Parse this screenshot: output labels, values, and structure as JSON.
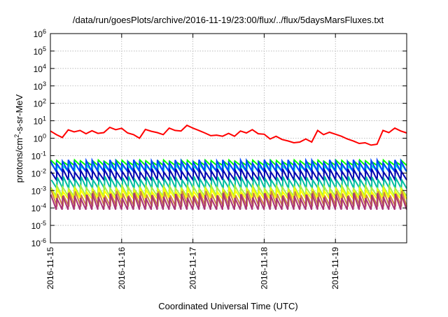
{
  "chart_data": {
    "type": "line",
    "title": "/data/run/goesPlots/archive/2016-11-19/23:00/flux/../flux/5daysMarsFluxes.txt",
    "xlabel": "Coordinated Universal Time (UTC)",
    "ylabel_base": "protons/cm",
    "ylabel_sup": "2",
    "ylabel_rest": "-s-sr-MeV",
    "x_tick_labels": [
      "2016-11-15",
      "2016-11-16",
      "2016-11-17",
      "2016-11-18",
      "2016-11-19"
    ],
    "x_range": [
      "2016-11-15 00:00",
      "2016-11-20 00:00"
    ],
    "y_scale": "log",
    "y_tick_base": "10",
    "y_tick_exponents": [
      "-6",
      "-5",
      "-4",
      "-3",
      "-2",
      "-1",
      "0",
      "1",
      "2",
      "3",
      "4",
      "5",
      "6"
    ],
    "y_range": [
      1e-06,
      1000000.0
    ],
    "grid": true,
    "legend": "none",
    "series": [
      {
        "color": "#ff0000",
        "x_hours": [
          0,
          2,
          4,
          6,
          8,
          10,
          12,
          14,
          16,
          18,
          20,
          22,
          24,
          26,
          28,
          30,
          32,
          34,
          36,
          38,
          40,
          42,
          44,
          46,
          48,
          50,
          52,
          54,
          56,
          58,
          60,
          62,
          64,
          66,
          68,
          70,
          72,
          74,
          76,
          78,
          80,
          82,
          84,
          86,
          88,
          90,
          92,
          94,
          96,
          98,
          100,
          102,
          104,
          106,
          108,
          110,
          112,
          114,
          116,
          118,
          120
        ],
        "values": [
          2.6,
          1.6,
          1.1,
          3,
          2.3,
          2.8,
          1.8,
          2.7,
          1.9,
          2.1,
          4.2,
          3.1,
          3.7,
          2,
          1.6,
          1,
          3.2,
          2.5,
          2.1,
          1.6,
          3.8,
          2.8,
          2.6,
          5.5,
          3.8,
          2.8,
          2,
          1.4,
          1.5,
          1.3,
          1.9,
          1.3,
          2.6,
          2,
          3.1,
          1.8,
          1.7,
          0.9,
          1.3,
          0.85,
          0.7,
          0.55,
          0.6,
          0.9,
          0.6,
          2.8,
          1.6,
          2.2,
          1.7,
          1.3,
          0.9,
          0.7,
          0.5,
          0.55,
          0.4,
          0.45,
          2.8,
          2.1,
          3.8,
          2.6,
          2
        ]
      },
      {
        "color": "#00ff00",
        "baseline": 0.028,
        "amplitude_decades": 0.3,
        "spikes_per_day": 12
      },
      {
        "color": "#00ddcc",
        "baseline": 0.012,
        "amplitude_decades": 0.45,
        "spikes_per_day": 12
      },
      {
        "color": "#0044ff",
        "baseline": 0.013,
        "amplitude_decades": 0.65,
        "spikes_per_day": 12
      },
      {
        "color": "#0000b0",
        "baseline": 0.004,
        "amplitude_decades": 0.65,
        "spikes_per_day": 12
      },
      {
        "color": "#00bfa0",
        "baseline": 0.0013,
        "amplitude_decades": 0.7,
        "spikes_per_day": 12
      },
      {
        "color": "#aaee44",
        "baseline": 0.0005,
        "amplitude_decades": 0.6,
        "spikes_per_day": 12
      },
      {
        "color": "#ffff00",
        "baseline": 0.00032,
        "amplitude_decades": 0.6,
        "spikes_per_day": 12
      },
      {
        "color": "#cc8844",
        "baseline": 0.00012,
        "amplitude_decades": 0.9,
        "spikes_per_day": 12
      },
      {
        "color": "#aa3377",
        "baseline": 8e-05,
        "amplitude_decades": 0.95,
        "spikes_per_day": 12
      }
    ]
  }
}
